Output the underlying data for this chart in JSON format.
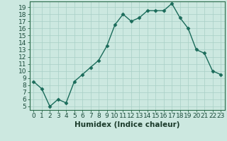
{
  "title": "",
  "xlabel": "Humidex (Indice chaleur)",
  "x": [
    0,
    1,
    2,
    3,
    4,
    5,
    6,
    7,
    8,
    9,
    10,
    11,
    12,
    13,
    14,
    15,
    16,
    17,
    18,
    19,
    20,
    21,
    22,
    23
  ],
  "y": [
    8.5,
    7.5,
    5.0,
    6.0,
    5.5,
    8.5,
    9.5,
    10.5,
    11.5,
    13.5,
    16.5,
    18.0,
    17.0,
    17.5,
    18.5,
    18.5,
    18.5,
    19.5,
    17.5,
    16.0,
    13.0,
    12.5,
    10.0,
    9.5
  ],
  "line_color": "#1a6b5a",
  "marker": "D",
  "marker_size": 2.5,
  "bg_color": "#cce8e0",
  "grid_color": "#a8cfc5",
  "ylim": [
    4.5,
    19.8
  ],
  "xlim": [
    -0.5,
    23.5
  ],
  "yticks": [
    5,
    6,
    7,
    8,
    9,
    10,
    11,
    12,
    13,
    14,
    15,
    16,
    17,
    18,
    19
  ],
  "xticks": [
    0,
    1,
    2,
    3,
    4,
    5,
    6,
    7,
    8,
    9,
    10,
    11,
    12,
    13,
    14,
    15,
    16,
    17,
    18,
    19,
    20,
    21,
    22,
    23
  ],
  "axis_fontsize": 7.5,
  "tick_fontsize": 6.5,
  "line_width": 1.0
}
